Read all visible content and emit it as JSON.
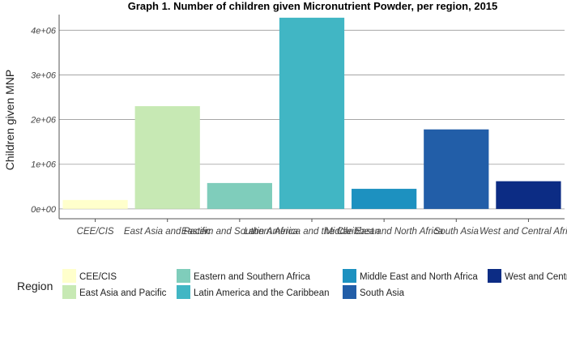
{
  "chart_data": {
    "type": "bar",
    "title": "Graph 1. Number of children given Micronutrient Powder, per region, 2015",
    "xlabel": "",
    "ylabel": "Children given MNP",
    "ylim": [
      -220000,
      4350000
    ],
    "yticks": [
      {
        "value": 0,
        "label": "0e+00"
      },
      {
        "value": 1000000,
        "label": "1e+06"
      },
      {
        "value": 2000000,
        "label": "2e+06"
      },
      {
        "value": 3000000,
        "label": "3e+06"
      },
      {
        "value": 4000000,
        "label": "4e+06"
      }
    ],
    "categories": [
      "CEE/CIS",
      "East Asia and Pacific",
      "Eastern and Southern Africa",
      "Latin America and the Caribbean",
      "Middle East and North Africa",
      "South Asia",
      "West and Central Africa"
    ],
    "values": [
      200000,
      2300000,
      580000,
      4280000,
      450000,
      1780000,
      620000
    ],
    "colors": [
      "#FFFFCC",
      "#C7E9B4",
      "#7FCDBB",
      "#41B6C4",
      "#1D91C0",
      "#225EA8",
      "#0C2C84"
    ],
    "grid": true,
    "legend": {
      "title": "Region",
      "position": "bottom",
      "entries": [
        "CEE/CIS",
        "East Asia and Pacific",
        "Eastern and Southern Africa",
        "Latin America and the Caribbean",
        "Middle East and North Africa",
        "South Asia",
        "West and Central Africa"
      ]
    }
  }
}
